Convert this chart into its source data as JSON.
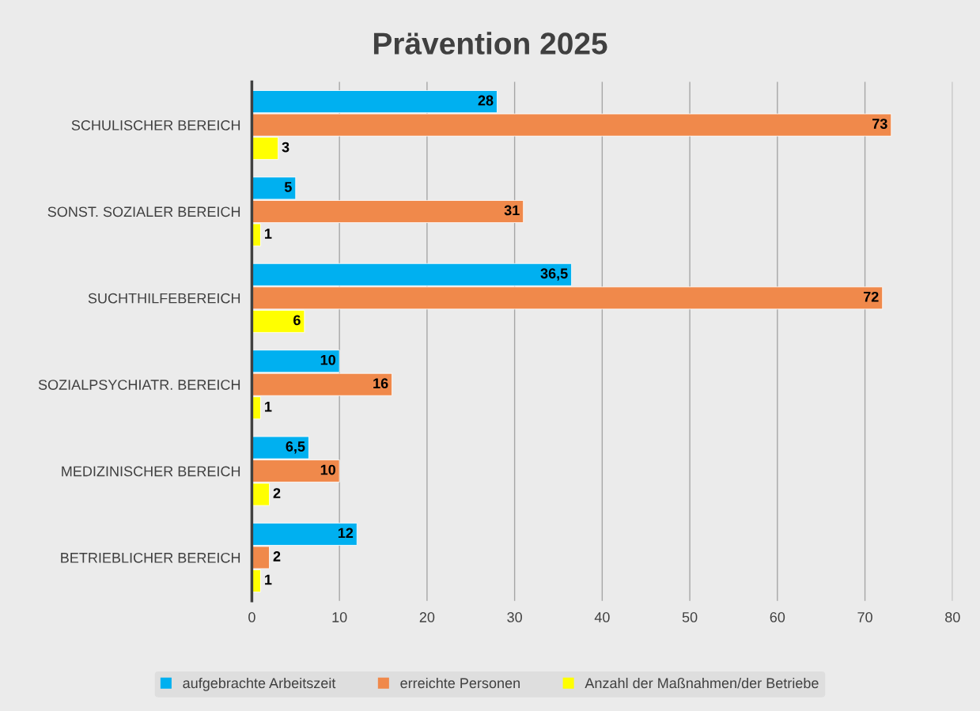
{
  "chart_data": {
    "type": "bar",
    "orientation": "horizontal",
    "title": "Prävention 2025",
    "categories": [
      "SCHULISCHER BEREICH",
      "SONST. SOZIALER BEREICH",
      "SUCHTHILFEBEREICH",
      "SOZIALPSYCHIATR. BEREICH",
      "MEDIZINISCHER BEREICH",
      "BETRIEBLICHER BEREICH"
    ],
    "series": [
      {
        "name": "aufgebrachte Arbeitszeit",
        "color": "#00b0f0",
        "values": [
          28,
          5,
          36.5,
          10,
          6.5,
          12
        ],
        "value_labels": [
          "28",
          "5",
          "36,5",
          "10",
          "6,5",
          "12"
        ]
      },
      {
        "name": "erreichte Personen",
        "color": "#f0894b",
        "values": [
          73,
          31,
          72,
          16,
          10,
          2
        ],
        "value_labels": [
          "73",
          "31",
          "72",
          "16",
          "10",
          "2"
        ]
      },
      {
        "name": "Anzahl der Maßnahmen/der Betriebe",
        "color": "#ffff00",
        "values": [
          3,
          1,
          6,
          1,
          2,
          1
        ],
        "value_labels": [
          "3",
          "1",
          "6",
          "1",
          "2",
          "1"
        ]
      }
    ],
    "xlim": [
      0,
      80
    ],
    "xticks": [
      0,
      10,
      20,
      30,
      40,
      50,
      60,
      70,
      80
    ],
    "grid": "x",
    "legend": "bottom"
  }
}
